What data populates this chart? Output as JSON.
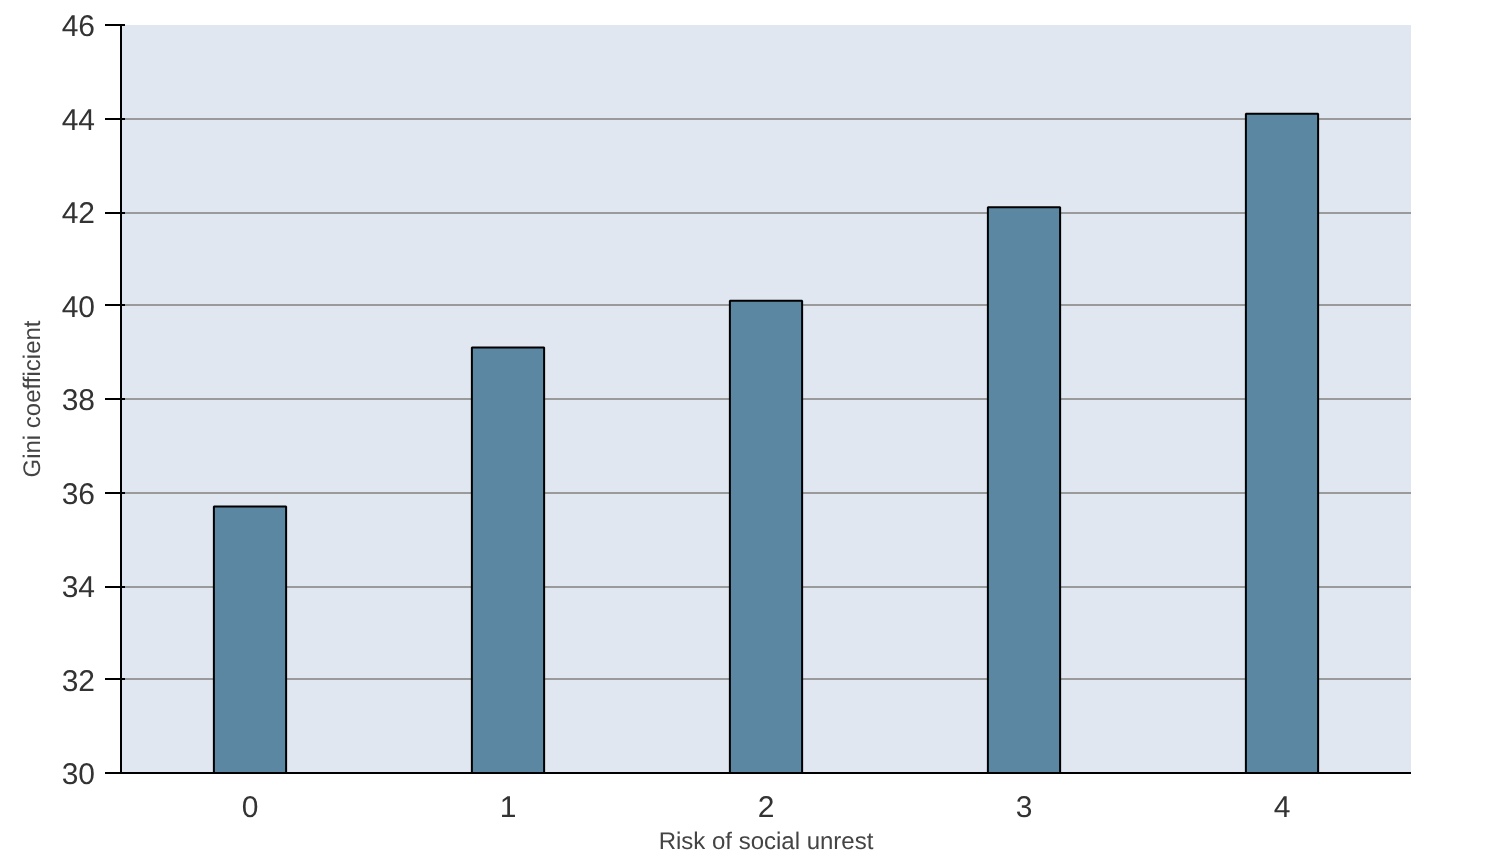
{
  "chart_data": {
    "type": "bar",
    "xlabel": "Risk of social unrest",
    "ylabel": "Gini coefficient",
    "categories": [
      "0",
      "1",
      "2",
      "3",
      "4"
    ],
    "values": [
      35.7,
      39.1,
      40.1,
      42.1,
      44.1
    ],
    "color": "#5b87a3",
    "ylim": [
      30,
      46
    ],
    "yticks": [
      30,
      32,
      34,
      36,
      38,
      40,
      42,
      44,
      46
    ],
    "grid": "y"
  }
}
